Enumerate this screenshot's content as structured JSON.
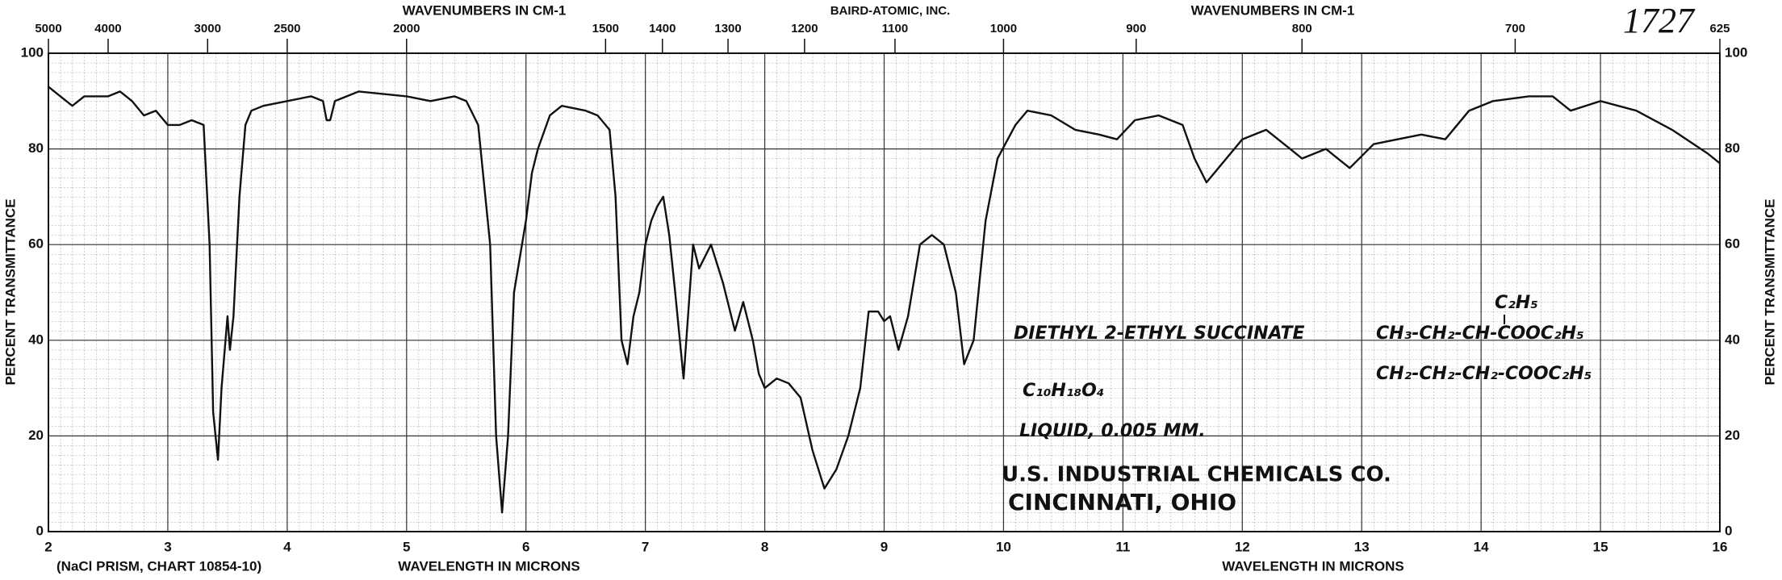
{
  "chart_data": {
    "type": "line",
    "title": "BAIRD-ATOMIC, INC.",
    "top_axis_label_left": "WAVENUMBERS IN CM-1",
    "top_axis_label_right": "WAVENUMBERS IN CM-1",
    "chart_number": "1727",
    "ylabel": "PERCENT TRANSMITTANCE",
    "ylabel_right": "PERCENT TRANSMITTANCE",
    "xlabel_left": "WAVELENGTH IN MICRONS",
    "xlabel_right": "WAVELENGTH IN MICRONS",
    "footnote": "(NaCl PRISM, CHART 10854-10)",
    "annotations": [
      "DIETHYL 2-ETHYL SUCCINATE",
      "C₁₀H₁₈O₄",
      "LIQUID, 0.005 MM.",
      "U.S. INDUSTRIAL CHEMICALS CO.",
      "CINCINNATI, OHIO",
      "C₂H₅",
      "CH₃-CH₂-CH-COOC₂H₅",
      "CH₂-CH₂-CH₂-COOC₂H₅"
    ],
    "color": "#111111",
    "x": [
      2.0,
      2.1,
      2.2,
      2.3,
      2.5,
      2.6,
      2.7,
      2.8,
      2.9,
      3.0,
      3.1,
      3.2,
      3.3,
      3.35,
      3.38,
      3.42,
      3.45,
      3.5,
      3.52,
      3.55,
      3.6,
      3.65,
      3.7,
      3.8,
      4.0,
      4.2,
      4.3,
      4.33,
      4.36,
      4.4,
      4.6,
      5.0,
      5.2,
      5.4,
      5.5,
      5.6,
      5.7,
      5.75,
      5.8,
      5.85,
      5.9,
      6.0,
      6.05,
      6.1,
      6.2,
      6.3,
      6.5,
      6.6,
      6.7,
      6.75,
      6.8,
      6.85,
      6.9,
      6.95,
      7.0,
      7.05,
      7.1,
      7.15,
      7.2,
      7.25,
      7.32,
      7.4,
      7.45,
      7.55,
      7.65,
      7.75,
      7.82,
      7.9,
      7.95,
      8.0,
      8.1,
      8.2,
      8.3,
      8.4,
      8.5,
      8.6,
      8.7,
      8.8,
      8.87,
      8.95,
      9.0,
      9.05,
      9.12,
      9.2,
      9.3,
      9.4,
      9.5,
      9.6,
      9.67,
      9.75,
      9.85,
      9.95,
      10.1,
      10.2,
      10.4,
      10.6,
      10.8,
      10.95,
      11.1,
      11.3,
      11.5,
      11.6,
      11.7,
      11.8,
      12.0,
      12.2,
      12.4,
      12.5,
      12.7,
      12.9,
      13.1,
      13.3,
      13.5,
      13.7,
      13.9,
      14.1,
      14.4,
      14.6,
      14.75,
      15.0,
      15.3,
      15.6,
      15.9,
      16.0
    ],
    "values": [
      93,
      91,
      89,
      91,
      91,
      92,
      90,
      87,
      88,
      85,
      85,
      86,
      85,
      60,
      25,
      15,
      30,
      45,
      38,
      45,
      70,
      85,
      88,
      89,
      90,
      91,
      90,
      86,
      86,
      90,
      92,
      91,
      90,
      91,
      90,
      85,
      60,
      20,
      4,
      20,
      50,
      65,
      75,
      80,
      87,
      89,
      88,
      87,
      84,
      70,
      40,
      35,
      45,
      50,
      60,
      65,
      68,
      70,
      62,
      50,
      32,
      60,
      55,
      60,
      52,
      42,
      48,
      40,
      33,
      30,
      32,
      31,
      28,
      17,
      9,
      13,
      20,
      30,
      46,
      46,
      44,
      45,
      38,
      45,
      60,
      62,
      60,
      50,
      35,
      40,
      65,
      78,
      85,
      88,
      87,
      84,
      83,
      82,
      86,
      87,
      85,
      78,
      73,
      76,
      82,
      84,
      80,
      78,
      80,
      76,
      81,
      82,
      83,
      82,
      88,
      90,
      91,
      91,
      88,
      90,
      88,
      84,
      79,
      77
    ],
    "xlim": [
      2,
      16
    ],
    "ylim": [
      0,
      100
    ],
    "xticks": [
      2,
      3,
      4,
      5,
      6,
      7,
      8,
      9,
      10,
      11,
      12,
      13,
      14,
      15,
      16
    ],
    "yticks": [
      0,
      20,
      40,
      60,
      80,
      100
    ],
    "x2ticks": [
      5000,
      4000,
      3000,
      2500,
      2000,
      1500,
      1400,
      1300,
      1200,
      1100,
      1000,
      900,
      800,
      700,
      625
    ],
    "grid": true
  }
}
